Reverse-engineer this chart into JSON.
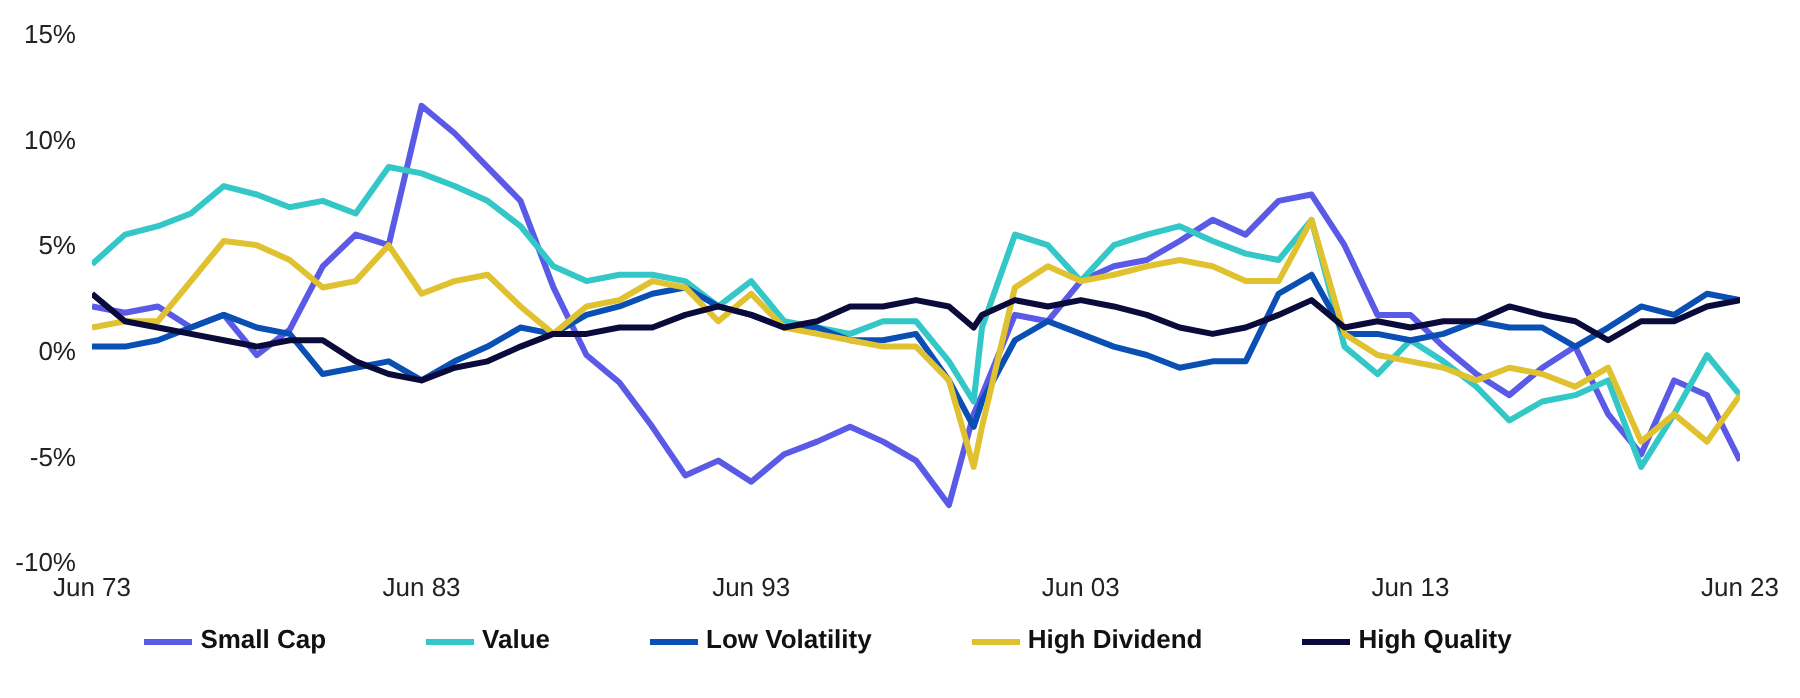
{
  "chart_data": {
    "type": "line",
    "x": [
      "1973-06",
      "1974-06",
      "1975-06",
      "1976-06",
      "1977-06",
      "1978-06",
      "1979-06",
      "1980-06",
      "1981-06",
      "1982-06",
      "1983-06",
      "1984-06",
      "1985-06",
      "1986-06",
      "1987-06",
      "1988-06",
      "1989-06",
      "1990-06",
      "1991-06",
      "1992-06",
      "1993-06",
      "1994-06",
      "1995-06",
      "1996-06",
      "1997-06",
      "1998-06",
      "1999-06",
      "2000-03",
      "2000-06",
      "2001-06",
      "2002-06",
      "2003-06",
      "2004-06",
      "2005-06",
      "2006-06",
      "2007-06",
      "2008-06",
      "2009-06",
      "2010-06",
      "2011-06",
      "2012-06",
      "2013-06",
      "2014-06",
      "2015-06",
      "2016-06",
      "2017-06",
      "2018-06",
      "2019-06",
      "2020-06",
      "2021-06",
      "2022-06",
      "2023-06"
    ],
    "series": [
      {
        "name": "Small Cap",
        "color": "#5a5ae6",
        "values": [
          2.1,
          1.8,
          2.1,
          1.1,
          1.7,
          -0.2,
          1.0,
          4.0,
          5.5,
          5.0,
          11.6,
          10.3,
          8.7,
          7.1,
          3.0,
          -0.2,
          -1.5,
          -3.6,
          -5.9,
          -5.2,
          -6.2,
          -4.9,
          -4.3,
          -3.6,
          -4.3,
          -5.2,
          -7.3,
          -3.0,
          -2.1,
          1.7,
          1.4,
          3.3,
          4.0,
          4.3,
          5.2,
          6.2,
          5.5,
          7.1,
          7.4,
          5.0,
          1.7,
          1.7,
          0.2,
          -1.1,
          -2.1,
          -0.8,
          0.2,
          -3.0,
          -4.9,
          -1.4,
          -2.1,
          -5.2
        ]
      },
      {
        "name": "Value",
        "color": "#33c7c7",
        "values": [
          4.1,
          5.5,
          5.9,
          6.5,
          7.8,
          7.4,
          6.8,
          7.1,
          6.5,
          8.7,
          8.4,
          7.8,
          7.1,
          5.9,
          4.0,
          3.3,
          3.6,
          3.6,
          3.3,
          2.1,
          3.3,
          1.4,
          1.1,
          0.8,
          1.4,
          1.4,
          -0.5,
          -2.4,
          1.1,
          5.5,
          5.0,
          3.3,
          5.0,
          5.5,
          5.9,
          5.2,
          4.6,
          4.3,
          6.2,
          0.2,
          -1.1,
          0.5,
          -0.5,
          -1.7,
          -3.3,
          -2.4,
          -2.1,
          -1.4,
          -5.5,
          -3.0,
          -0.2,
          -2.1
        ]
      },
      {
        "name": "Low Volatility",
        "color": "#0a50b4",
        "values": [
          0.2,
          0.2,
          0.5,
          1.1,
          1.7,
          1.1,
          0.8,
          -1.1,
          -0.8,
          -0.5,
          -1.4,
          -0.5,
          0.2,
          1.1,
          0.8,
          1.7,
          2.1,
          2.7,
          3.0,
          2.1,
          1.7,
          1.1,
          1.1,
          0.5,
          0.5,
          0.8,
          -1.4,
          -3.6,
          -2.4,
          0.5,
          1.4,
          0.8,
          0.2,
          -0.2,
          -0.8,
          -0.5,
          -0.5,
          2.7,
          3.6,
          0.8,
          0.8,
          0.5,
          0.8,
          1.4,
          1.1,
          1.1,
          0.2,
          1.1,
          2.1,
          1.7,
          2.7,
          2.4
        ]
      },
      {
        "name": "High Dividend",
        "color": "#e0c230",
        "values": [
          1.1,
          1.4,
          1.4,
          3.3,
          5.2,
          5.0,
          4.3,
          3.0,
          3.3,
          5.0,
          2.7,
          3.3,
          3.6,
          2.1,
          0.8,
          2.1,
          2.4,
          3.3,
          3.0,
          1.4,
          2.7,
          1.1,
          0.8,
          0.5,
          0.2,
          0.2,
          -1.4,
          -5.5,
          -3.6,
          3.0,
          4.0,
          3.3,
          3.6,
          4.0,
          4.3,
          4.0,
          3.3,
          3.3,
          6.2,
          0.8,
          -0.2,
          -0.5,
          -0.8,
          -1.4,
          -0.8,
          -1.1,
          -1.7,
          -0.8,
          -4.3,
          -3.0,
          -4.3,
          -2.1
        ]
      },
      {
        "name": "High Quality",
        "color": "#0b0b3b",
        "values": [
          2.7,
          1.4,
          1.1,
          0.8,
          0.5,
          0.2,
          0.5,
          0.5,
          -0.5,
          -1.1,
          -1.4,
          -0.8,
          -0.5,
          0.2,
          0.8,
          0.8,
          1.1,
          1.1,
          1.7,
          2.1,
          1.7,
          1.1,
          1.4,
          2.1,
          2.1,
          2.4,
          2.1,
          1.1,
          1.7,
          2.4,
          2.1,
          2.4,
          2.1,
          1.7,
          1.1,
          0.8,
          1.1,
          1.7,
          2.4,
          1.1,
          1.4,
          1.1,
          1.4,
          1.4,
          2.1,
          1.7,
          1.4,
          0.5,
          1.4,
          1.4,
          2.1,
          2.4
        ]
      }
    ],
    "xlim": [
      "1973-06",
      "2023-06"
    ],
    "xticks": [
      {
        "value": "1973-06",
        "label": "Jun 73"
      },
      {
        "value": "1983-06",
        "label": "Jun 83"
      },
      {
        "value": "1993-06",
        "label": "Jun 93"
      },
      {
        "value": "2003-06",
        "label": "Jun 03"
      },
      {
        "value": "2013-06",
        "label": "Jun 13"
      },
      {
        "value": "2023-06",
        "label": "Jun 23"
      }
    ],
    "ylim": [
      -10,
      15
    ],
    "yticks": [
      {
        "value": -10,
        "label": "-10%"
      },
      {
        "value": -5,
        "label": "-5%"
      },
      {
        "value": 0,
        "label": "0%"
      },
      {
        "value": 5,
        "label": "5%"
      },
      {
        "value": 10,
        "label": "10%"
      },
      {
        "value": 15,
        "label": "15%"
      }
    ],
    "legend": "bottom",
    "grid": false,
    "marker": "none",
    "line_style": "solid"
  }
}
